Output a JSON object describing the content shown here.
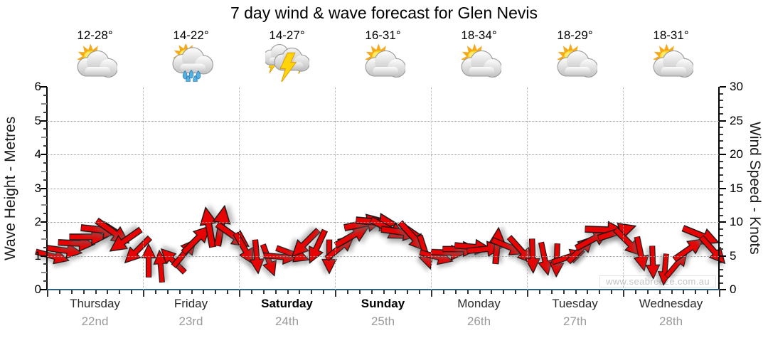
{
  "title": "7 day wind & wave forecast for Glen Nevis",
  "watermark": "www.seabreeze.com.au",
  "axes": {
    "left_label": "Wave Height - Metres",
    "right_label": "Wind Speed - Knots"
  },
  "days": [
    {
      "name": "Thursday",
      "date": "22nd",
      "temp": "12-28°",
      "icon": "partly-cloudy",
      "bold": false
    },
    {
      "name": "Friday",
      "date": "23rd",
      "temp": "14-22°",
      "icon": "partly-cloudy-rain",
      "bold": false
    },
    {
      "name": "Saturday",
      "date": "24th",
      "temp": "14-27°",
      "icon": "thunderstorm",
      "bold": true
    },
    {
      "name": "Sunday",
      "date": "25th",
      "temp": "16-31°",
      "icon": "partly-cloudy",
      "bold": true
    },
    {
      "name": "Monday",
      "date": "26th",
      "temp": "18-34°",
      "icon": "partly-cloudy",
      "bold": false
    },
    {
      "name": "Tuesday",
      "date": "27th",
      "temp": "18-29°",
      "icon": "partly-cloudy",
      "bold": false
    },
    {
      "name": "Wednesday",
      "date": "28th",
      "temp": "18-31°",
      "icon": "partly-cloudy",
      "bold": false
    }
  ],
  "chart_data": {
    "type": "wind-arrow-forecast",
    "title": "7 day wind & wave forecast for Glen Nevis",
    "left_axis": {
      "label": "Wave Height - Metres",
      "range": [
        0,
        6
      ],
      "ticks": [
        0,
        1,
        2,
        3,
        4,
        5,
        6
      ]
    },
    "right_axis": {
      "label": "Wind Speed - Knots",
      "range": [
        0,
        30
      ],
      "ticks": [
        0,
        5,
        10,
        15,
        20,
        25,
        30
      ]
    },
    "x_axis": {
      "categories": [
        "Thursday 22nd",
        "Friday 23rd",
        "Saturday 24th",
        "Sunday 25th",
        "Monday 26th",
        "Tuesday 27th",
        "Wednesday 28th"
      ],
      "slots_per_day": 8
    },
    "grid": {
      "horizontal_at_metres": [
        1,
        2,
        3,
        4,
        5
      ],
      "vertical": "day-boundaries",
      "style": "dotted"
    },
    "colors": {
      "arrow": "#e60404",
      "arrow_outline": "#141414",
      "axis_x": "#2d627f",
      "grid": "#999999",
      "date_text": "#9a9a9a",
      "watermark": "#c4c4c4"
    },
    "points": [
      {
        "day": 0,
        "slot": 0,
        "wave_m": 1.0,
        "knots": 5.0,
        "dir_deg": 15
      },
      {
        "day": 0,
        "slot": 1,
        "wave_m": 1.15,
        "knots": 5.8,
        "dir_deg": 8
      },
      {
        "day": 0,
        "slot": 2,
        "wave_m": 1.35,
        "knots": 6.8,
        "dir_deg": 3
      },
      {
        "day": 0,
        "slot": 3,
        "wave_m": 1.55,
        "knots": 7.8,
        "dir_deg": 0
      },
      {
        "day": 0,
        "slot": 4,
        "wave_m": 1.75,
        "knots": 8.8,
        "dir_deg": 6
      },
      {
        "day": 0,
        "slot": 5,
        "wave_m": 1.7,
        "knots": 8.5,
        "dir_deg": 35
      },
      {
        "day": 0,
        "slot": 6,
        "wave_m": 1.45,
        "knots": 7.3,
        "dir_deg": 145
      },
      {
        "day": 0,
        "slot": 7,
        "wave_m": 1.15,
        "knots": 5.8,
        "dir_deg": 135
      },
      {
        "day": 1,
        "slot": 0,
        "wave_m": 0.85,
        "knots": 4.3,
        "dir_deg": -90
      },
      {
        "day": 1,
        "slot": 1,
        "wave_m": 0.7,
        "knots": 3.5,
        "dir_deg": -95
      },
      {
        "day": 1,
        "slot": 2,
        "wave_m": 0.85,
        "knots": 4.3,
        "dir_deg": -135
      },
      {
        "day": 1,
        "slot": 3,
        "wave_m": 1.1,
        "knots": 5.5,
        "dir_deg": -50
      },
      {
        "day": 1,
        "slot": 4,
        "wave_m": 1.5,
        "knots": 7.5,
        "dir_deg": -45
      },
      {
        "day": 1,
        "slot": 5,
        "wave_m": 1.85,
        "knots": 9.3,
        "dir_deg": -100
      },
      {
        "day": 1,
        "slot": 6,
        "wave_m": 1.9,
        "knots": 9.5,
        "dir_deg": -80
      },
      {
        "day": 1,
        "slot": 7,
        "wave_m": 1.6,
        "knots": 8.0,
        "dir_deg": 35
      },
      {
        "day": 2,
        "slot": 0,
        "wave_m": 1.2,
        "knots": 6.0,
        "dir_deg": 60
      },
      {
        "day": 2,
        "slot": 1,
        "wave_m": 0.95,
        "knots": 4.8,
        "dir_deg": 85
      },
      {
        "day": 2,
        "slot": 2,
        "wave_m": 0.85,
        "knots": 4.3,
        "dir_deg": 70
      },
      {
        "day": 2,
        "slot": 3,
        "wave_m": 0.95,
        "knots": 4.8,
        "dir_deg": 5
      },
      {
        "day": 2,
        "slot": 4,
        "wave_m": 1.05,
        "knots": 5.3,
        "dir_deg": 20
      },
      {
        "day": 2,
        "slot": 5,
        "wave_m": 1.35,
        "knots": 6.8,
        "dir_deg": 135
      },
      {
        "day": 2,
        "slot": 6,
        "wave_m": 1.25,
        "knots": 6.3,
        "dir_deg": 115
      },
      {
        "day": 2,
        "slot": 7,
        "wave_m": 0.95,
        "knots": 4.8,
        "dir_deg": 90
      },
      {
        "day": 3,
        "slot": 0,
        "wave_m": 1.25,
        "knots": 6.3,
        "dir_deg": -40
      },
      {
        "day": 3,
        "slot": 1,
        "wave_m": 1.6,
        "knots": 8.0,
        "dir_deg": -30
      },
      {
        "day": 3,
        "slot": 2,
        "wave_m": 1.95,
        "knots": 9.8,
        "dir_deg": -12
      },
      {
        "day": 3,
        "slot": 3,
        "wave_m": 2.0,
        "knots": 10.0,
        "dir_deg": 5
      },
      {
        "day": 3,
        "slot": 4,
        "wave_m": 1.8,
        "knots": 9.0,
        "dir_deg": 28
      },
      {
        "day": 3,
        "slot": 5,
        "wave_m": 1.7,
        "knots": 8.5,
        "dir_deg": 8
      },
      {
        "day": 3,
        "slot": 6,
        "wave_m": 1.55,
        "knots": 7.8,
        "dir_deg": 48
      },
      {
        "day": 3,
        "slot": 7,
        "wave_m": 1.1,
        "knots": 5.5,
        "dir_deg": 72
      },
      {
        "day": 4,
        "slot": 0,
        "wave_m": 0.95,
        "knots": 4.8,
        "dir_deg": 15
      },
      {
        "day": 4,
        "slot": 1,
        "wave_m": 1.1,
        "knots": 5.5,
        "dir_deg": 2
      },
      {
        "day": 4,
        "slot": 2,
        "wave_m": 1.2,
        "knots": 6.0,
        "dir_deg": 0
      },
      {
        "day": 4,
        "slot": 3,
        "wave_m": 1.25,
        "knots": 6.3,
        "dir_deg": 5
      },
      {
        "day": 4,
        "slot": 4,
        "wave_m": 1.2,
        "knots": 6.0,
        "dir_deg": -6
      },
      {
        "day": 4,
        "slot": 5,
        "wave_m": 1.3,
        "knots": 6.5,
        "dir_deg": -85
      },
      {
        "day": 4,
        "slot": 6,
        "wave_m": 1.25,
        "knots": 6.3,
        "dir_deg": 22
      },
      {
        "day": 4,
        "slot": 7,
        "wave_m": 1.15,
        "knots": 5.8,
        "dir_deg": 48
      },
      {
        "day": 5,
        "slot": 0,
        "wave_m": 1.0,
        "knots": 5.0,
        "dir_deg": 88
      },
      {
        "day": 5,
        "slot": 1,
        "wave_m": 0.9,
        "knots": 4.5,
        "dir_deg": 78
      },
      {
        "day": 5,
        "slot": 2,
        "wave_m": 0.85,
        "knots": 4.3,
        "dir_deg": 92
      },
      {
        "day": 5,
        "slot": 3,
        "wave_m": 0.95,
        "knots": 4.8,
        "dir_deg": -18
      },
      {
        "day": 5,
        "slot": 4,
        "wave_m": 1.2,
        "knots": 6.0,
        "dir_deg": -45
      },
      {
        "day": 5,
        "slot": 5,
        "wave_m": 1.5,
        "knots": 7.5,
        "dir_deg": -28
      },
      {
        "day": 5,
        "slot": 6,
        "wave_m": 1.75,
        "knots": 8.8,
        "dir_deg": 2
      },
      {
        "day": 5,
        "slot": 7,
        "wave_m": 1.7,
        "knots": 8.5,
        "dir_deg": -18
      },
      {
        "day": 6,
        "slot": 0,
        "wave_m": 1.4,
        "knots": 7.0,
        "dir_deg": 45
      },
      {
        "day": 6,
        "slot": 1,
        "wave_m": 1.05,
        "knots": 5.3,
        "dir_deg": 78
      },
      {
        "day": 6,
        "slot": 2,
        "wave_m": 0.8,
        "knots": 4.0,
        "dir_deg": 88
      },
      {
        "day": 6,
        "slot": 3,
        "wave_m": 0.6,
        "knots": 3.0,
        "dir_deg": 95
      },
      {
        "day": 6,
        "slot": 4,
        "wave_m": 0.75,
        "knots": 3.8,
        "dir_deg": -50
      },
      {
        "day": 6,
        "slot": 5,
        "wave_m": 1.2,
        "knots": 6.0,
        "dir_deg": -35
      },
      {
        "day": 6,
        "slot": 6,
        "wave_m": 1.6,
        "knots": 8.0,
        "dir_deg": 22
      },
      {
        "day": 6,
        "slot": 7,
        "wave_m": 1.15,
        "knots": 5.8,
        "dir_deg": 48
      }
    ]
  }
}
